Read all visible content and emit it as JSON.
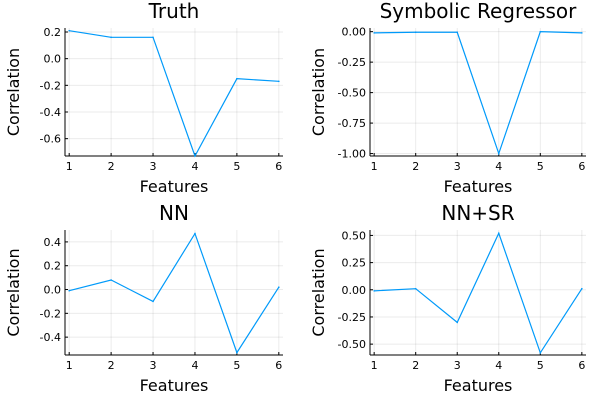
{
  "chart_data": [
    {
      "type": "line",
      "title": "Truth",
      "xlabel": "Features",
      "ylabel": "Correlation",
      "x": [
        1,
        2,
        3,
        4,
        5,
        6
      ],
      "xticks": [
        "1",
        "2",
        "3",
        "4",
        "5",
        "6"
      ],
      "xlim": [
        0.9,
        6.1
      ],
      "yticks": [
        0.2,
        0.0,
        -0.2,
        -0.4,
        -0.6
      ],
      "ytick_labels": [
        "0.2",
        "0.0",
        "-0.2",
        "-0.4",
        "-0.6"
      ],
      "ylim": [
        -0.73,
        0.23
      ],
      "grid": true,
      "series": [
        {
          "color": "#009AFA",
          "values": [
            0.21,
            0.16,
            0.16,
            -0.73,
            -0.15,
            -0.17
          ]
        }
      ]
    },
    {
      "type": "line",
      "title": "Symbolic Regressor",
      "xlabel": "Features",
      "ylabel": "Correlation",
      "x": [
        1,
        2,
        3,
        4,
        5,
        6
      ],
      "xticks": [
        "1",
        "2",
        "3",
        "4",
        "5",
        "6"
      ],
      "xlim": [
        0.9,
        6.1
      ],
      "yticks": [
        0.0,
        -0.25,
        -0.5,
        -0.75,
        -1.0
      ],
      "ytick_labels": [
        "0.00",
        "-0.25",
        "-0.50",
        "-0.75",
        "-1.00"
      ],
      "ylim": [
        -1.02,
        0.03
      ],
      "grid": true,
      "series": [
        {
          "color": "#009AFA",
          "values": [
            -0.01,
            -0.005,
            -0.005,
            -1.0,
            0.0,
            -0.01
          ]
        }
      ]
    },
    {
      "type": "line",
      "title": "NN",
      "xlabel": "Features",
      "ylabel": "Correlation",
      "x": [
        1,
        2,
        3,
        4,
        5,
        6
      ],
      "xticks": [
        "1",
        "2",
        "3",
        "4",
        "5",
        "6"
      ],
      "xlim": [
        0.9,
        6.1
      ],
      "yticks": [
        0.4,
        0.2,
        0.0,
        -0.2,
        -0.4
      ],
      "ytick_labels": [
        "0.4",
        "0.2",
        "0.0",
        "-0.2",
        "-0.4"
      ],
      "ylim": [
        -0.55,
        0.5
      ],
      "grid": true,
      "series": [
        {
          "color": "#009AFA",
          "values": [
            -0.01,
            0.08,
            -0.1,
            0.47,
            -0.53,
            0.02
          ]
        }
      ]
    },
    {
      "type": "line",
      "title": "NN+SR",
      "xlabel": "Features",
      "ylabel": "Correlation",
      "x": [
        1,
        2,
        3,
        4,
        5,
        6
      ],
      "xticks": [
        "1",
        "2",
        "3",
        "4",
        "5",
        "6"
      ],
      "xlim": [
        0.9,
        6.1
      ],
      "yticks": [
        0.5,
        0.25,
        0.0,
        -0.25,
        -0.5
      ],
      "ytick_labels": [
        "0.50",
        "0.25",
        "0.00",
        "-0.25",
        "-0.50"
      ],
      "ylim": [
        -0.6,
        0.55
      ],
      "grid": true,
      "series": [
        {
          "color": "#009AFA",
          "values": [
            -0.01,
            0.01,
            -0.3,
            0.52,
            -0.58,
            0.01
          ]
        }
      ]
    }
  ]
}
